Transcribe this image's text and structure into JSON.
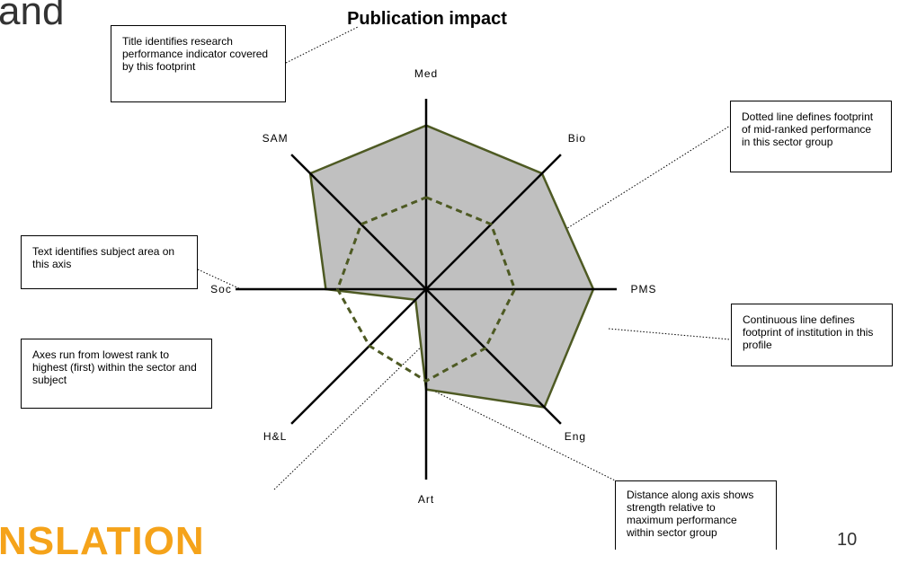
{
  "slide": {
    "corner_title": "and",
    "footer_text": "NSLATION",
    "page_number": "10"
  },
  "colors": {
    "footprint_fill": "#c0c0c0",
    "footprint_line": "#4e5a23",
    "accent_orange": "#f5a31a"
  },
  "annotations": {
    "title_note": "Title identifies research performance indicator covered by this footprint",
    "dotted_note": "Dotted line defines footprint of mid-ranked performance in this sector group",
    "subject_note": "Text identifies subject area on this axis",
    "axes_note": "Axes run from lowest rank to highest (first) within the sector and subject",
    "continuous_note": "Continuous line defines footprint of institution in this profile",
    "distance_note": "Distance along axis shows strength relative to maximum performance within sector group"
  },
  "chart_data": {
    "type": "radar",
    "title": "Publication impact",
    "axes": [
      "Med",
      "Bio",
      "PMS",
      "Eng",
      "Art",
      "H&L",
      "Soc",
      "SAM"
    ],
    "range": [
      0,
      1
    ],
    "series": [
      {
        "style": "continuous",
        "values": [
          0.98,
          0.98,
          1.0,
          1.0,
          0.6,
          0.09,
          0.6,
          0.98
        ]
      },
      {
        "style": "dotted",
        "values": [
          0.55,
          0.55,
          0.53,
          0.5,
          0.55,
          0.48,
          0.53,
          0.55
        ]
      }
    ],
    "grid": false,
    "legend": "none"
  }
}
